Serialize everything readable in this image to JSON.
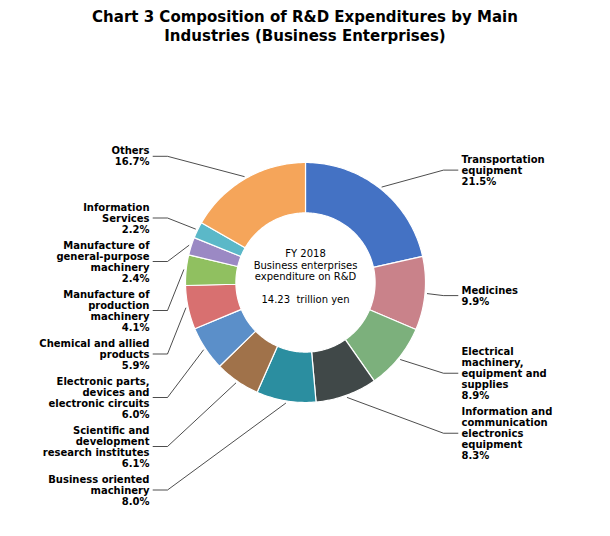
{
  "chart_data": {
    "type": "donut",
    "title": "Chart 3 Composition of R&D Expenditures by Main\nIndustries (Business Enterprises)",
    "annotations": [
      "FY 2018\nBusiness enterprises\nexpenditure on R&D\n\n14.23  trillion yen"
    ],
    "categories": [
      "Transportation\nequipment",
      "Medicines",
      "Electrical\nmachinery,\nequipment and\nsupplies",
      "Information and\ncommunication\nelectronics\nequipment",
      "Business oriented\nmachinery",
      "Scientific and\ndevelopment\nresearch institutes",
      "Electronic parts,\ndevices and\nelectronic circuits",
      "Chemical and allied\nproducts",
      "Manufacture of\nproduction\nmachinery",
      "Manufacture of\ngeneral-purpose\nmachinery",
      "Information\nServices",
      "Others"
    ],
    "values": [
      21.5,
      9.9,
      8.9,
      8.3,
      8.0,
      6.1,
      6.0,
      5.9,
      4.1,
      2.4,
      2.2,
      16.7
    ],
    "value_labels": [
      "21.5%",
      "9.9%",
      "8.9%",
      "8.3%",
      "8.0%",
      "6.1%",
      "6.0%",
      "5.9%",
      "4.1%",
      "2.4%",
      "2.2%",
      "16.7%"
    ],
    "data_labels": true,
    "colors": [
      "#4472C4",
      "#C9828A",
      "#7CB07C",
      "#404848",
      "#2B8EA0",
      "#A0724A",
      "#5B8FC9",
      "#D87070",
      "#90C060",
      "#9B89C4",
      "#5BB8C8",
      "#F5A55A"
    ]
  }
}
